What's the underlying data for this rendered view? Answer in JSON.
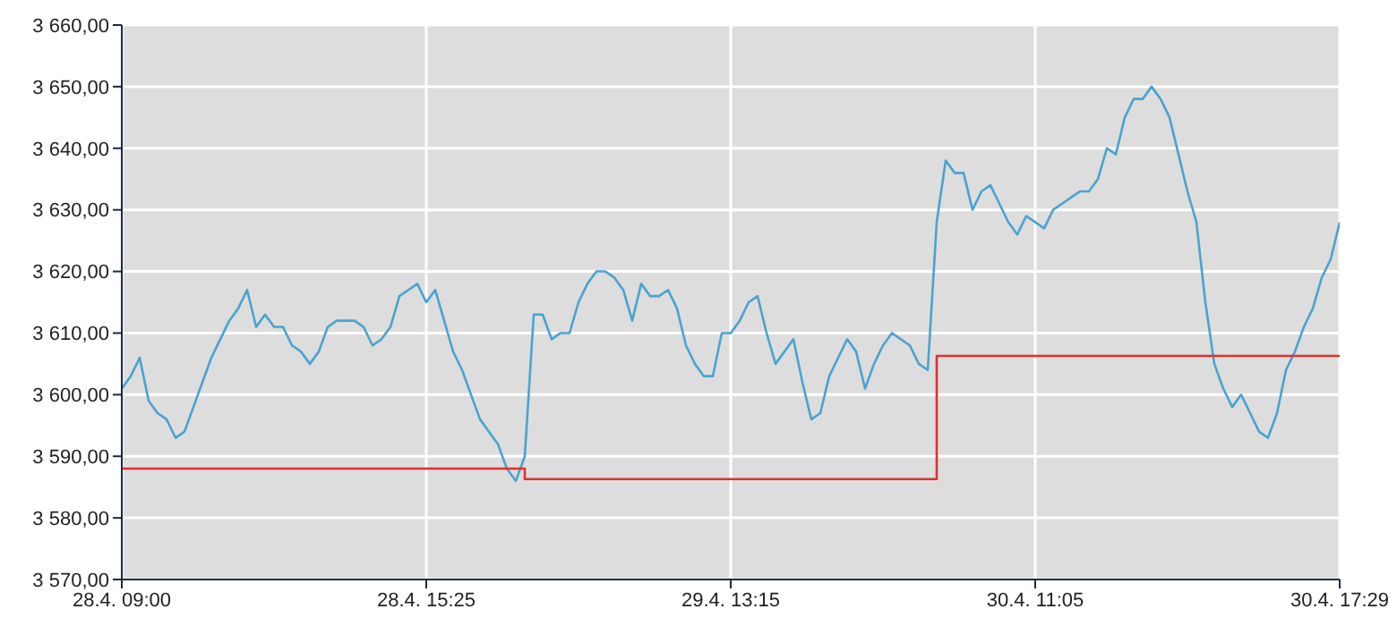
{
  "chart_data": {
    "type": "line",
    "categories": [
      "28.4. 09:00",
      null,
      null,
      null,
      null,
      null,
      null,
      null,
      null,
      null,
      null,
      null,
      null,
      null,
      null,
      null,
      null,
      null,
      null,
      null,
      null,
      null,
      null,
      null,
      null,
      null,
      null,
      null,
      null,
      null,
      null,
      null,
      null,
      null,
      "28.4. 15:25",
      null,
      null,
      null,
      null,
      null,
      null,
      null,
      null,
      null,
      null,
      null,
      null,
      null,
      null,
      null,
      null,
      null,
      null,
      null,
      null,
      null,
      null,
      null,
      null,
      null,
      null,
      null,
      null,
      null,
      null,
      null,
      null,
      null,
      "29.4. 13:15",
      null,
      null,
      null,
      null,
      null,
      null,
      null,
      null,
      null,
      null,
      null,
      null,
      null,
      null,
      null,
      null,
      null,
      null,
      null,
      null,
      null,
      null,
      null,
      null,
      null,
      null,
      null,
      null,
      null,
      null,
      null,
      null,
      null,
      "30.4. 11:05",
      null,
      null,
      null,
      null,
      null,
      null,
      null,
      null,
      null,
      null,
      null,
      null,
      null,
      null,
      null,
      null,
      null,
      null,
      null,
      null,
      null,
      null,
      null,
      null,
      null,
      null,
      null,
      null,
      null,
      null,
      null,
      null,
      null,
      "30.4. 17:29"
    ],
    "ylim": [
      3570,
      3660
    ],
    "yticks": [
      {
        "value": 3570,
        "label": "3 570,00"
      },
      {
        "value": 3580,
        "label": "3 580,00"
      },
      {
        "value": 3590,
        "label": "3 590,00"
      },
      {
        "value": 3600,
        "label": "3 600,00"
      },
      {
        "value": 3610,
        "label": "3 610,00"
      },
      {
        "value": 3620,
        "label": "3 620,00"
      },
      {
        "value": 3630,
        "label": "3 630,00"
      },
      {
        "value": 3640,
        "label": "3 640,00"
      },
      {
        "value": 3650,
        "label": "3 650,00"
      },
      {
        "value": 3660,
        "label": "3 660,00"
      }
    ],
    "grid": true,
    "series": [
      {
        "color": "#4aa3d0",
        "values": [
          3601,
          3603,
          3606,
          3599,
          3597,
          3596,
          3593,
          3594,
          3598,
          3602,
          3606,
          3609,
          3612,
          3614,
          3617,
          3611,
          3613,
          3611,
          3611,
          3608,
          3607,
          3605,
          3607,
          3611,
          3612,
          3612,
          3612,
          3611,
          3608,
          3609,
          3611,
          3616,
          3617,
          3618,
          3615,
          3617,
          3612,
          3607,
          3604,
          3600,
          3596,
          3594,
          3592,
          3588,
          3586,
          3590,
          3613,
          3613,
          3609,
          3610,
          3610,
          3615,
          3618,
          3620,
          3620,
          3619,
          3617,
          3612,
          3618,
          3616,
          3616,
          3617,
          3614,
          3608,
          3605,
          3603,
          3603,
          3610,
          3610,
          3612,
          3615,
          3616,
          3610,
          3605,
          3607,
          3609,
          3602,
          3596,
          3597,
          3603,
          3606,
          3609,
          3607,
          3601,
          3605,
          3608,
          3610,
          3609,
          3608,
          3605,
          3604,
          3628,
          3638,
          3636,
          3636,
          3630,
          3633,
          3634,
          3631,
          3628,
          3626,
          3629,
          3628,
          3627,
          3630,
          3631,
          3632,
          3633,
          3633,
          3635,
          3640,
          3639,
          3645,
          3648,
          3648,
          3650,
          3648,
          3645,
          3639,
          3633,
          3628,
          3615,
          3605,
          3601,
          3598,
          3600,
          3597,
          3594,
          3593,
          3597,
          3604,
          3607,
          3611,
          3614,
          3619,
          3622,
          3628
        ]
      },
      {
        "type": "step",
        "color": "#e03030",
        "values": [
          3588,
          3588,
          3588,
          3588,
          3588,
          3588,
          3588,
          3588,
          3588,
          3588,
          3588,
          3588,
          3588,
          3588,
          3588,
          3588,
          3588,
          3588,
          3588,
          3588,
          3588,
          3588,
          3588,
          3588,
          3588,
          3588,
          3588,
          3588,
          3588,
          3588,
          3588,
          3588,
          3588,
          3588,
          3588,
          3588,
          3588,
          3588,
          3588,
          3588,
          3588,
          3588,
          3588,
          3588,
          3588,
          3586.3,
          3586.3,
          3586.3,
          3586.3,
          3586.3,
          3586.3,
          3586.3,
          3586.3,
          3586.3,
          3586.3,
          3586.3,
          3586.3,
          3586.3,
          3586.3,
          3586.3,
          3586.3,
          3586.3,
          3586.3,
          3586.3,
          3586.3,
          3586.3,
          3586.3,
          3586.3,
          3586.3,
          3586.3,
          3586.3,
          3586.3,
          3586.3,
          3586.3,
          3586.3,
          3586.3,
          3586.3,
          3586.3,
          3586.3,
          3586.3,
          3586.3,
          3586.3,
          3586.3,
          3586.3,
          3586.3,
          3586.3,
          3586.3,
          3586.3,
          3586.3,
          3586.3,
          3586.3,
          3606.3,
          3606.3,
          3606.3,
          3606.3,
          3606.3,
          3606.3,
          3606.3,
          3606.3,
          3606.3,
          3606.3,
          3606.3,
          3606.3,
          3606.3,
          3606.3,
          3606.3,
          3606.3,
          3606.3,
          3606.3,
          3606.3,
          3606.3,
          3606.3,
          3606.3,
          3606.3,
          3606.3,
          3606.3,
          3606.3,
          3606.3,
          3606.3,
          3606.3,
          3606.3,
          3606.3,
          3606.3,
          3606.3,
          3606.3,
          3606.3,
          3606.3,
          3606.3,
          3606.3,
          3606.3,
          3606.3,
          3606.3,
          3606.3,
          3606.3,
          3606.3,
          3606.3,
          3606.3
        ]
      }
    ]
  }
}
